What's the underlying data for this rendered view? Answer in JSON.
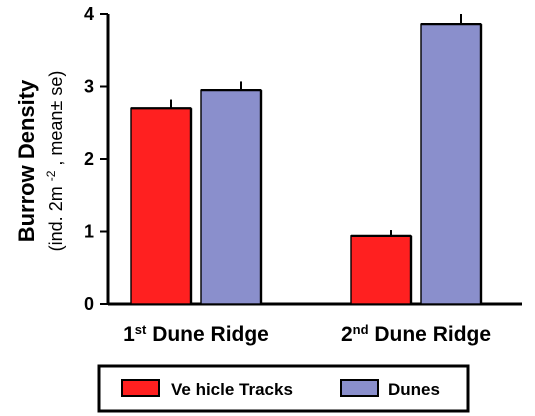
{
  "chart_data": {
    "type": "bar",
    "categories": [
      "1st Dune Ridge",
      "2nd Dune Ridge"
    ],
    "category_parts": [
      {
        "base": "1",
        "sup": "st",
        "rest": " Dune Ridge"
      },
      {
        "base": "2",
        "sup": "nd",
        "rest": " Dune Ridge"
      }
    ],
    "series": [
      {
        "name": "Ve hicle Tracks",
        "values": [
          2.7,
          0.94
        ],
        "errors": [
          0.12,
          0.08
        ],
        "color": "#ff2020"
      },
      {
        "name": "Dunes",
        "values": [
          2.95,
          3.86
        ],
        "errors": [
          0.12,
          0.14
        ],
        "color": "#8a8fcc"
      }
    ],
    "ylabel": {
      "main": "Burrow Density",
      "sub_prefix": "(ind. 2m",
      "sub_sup": "-2",
      "sub_suffix": ", mean± se)"
    },
    "yticks": [
      "0",
      "1",
      "2",
      "3",
      "4"
    ],
    "ylim": [
      0,
      4
    ],
    "grid": false,
    "legend_position": "bottom"
  }
}
